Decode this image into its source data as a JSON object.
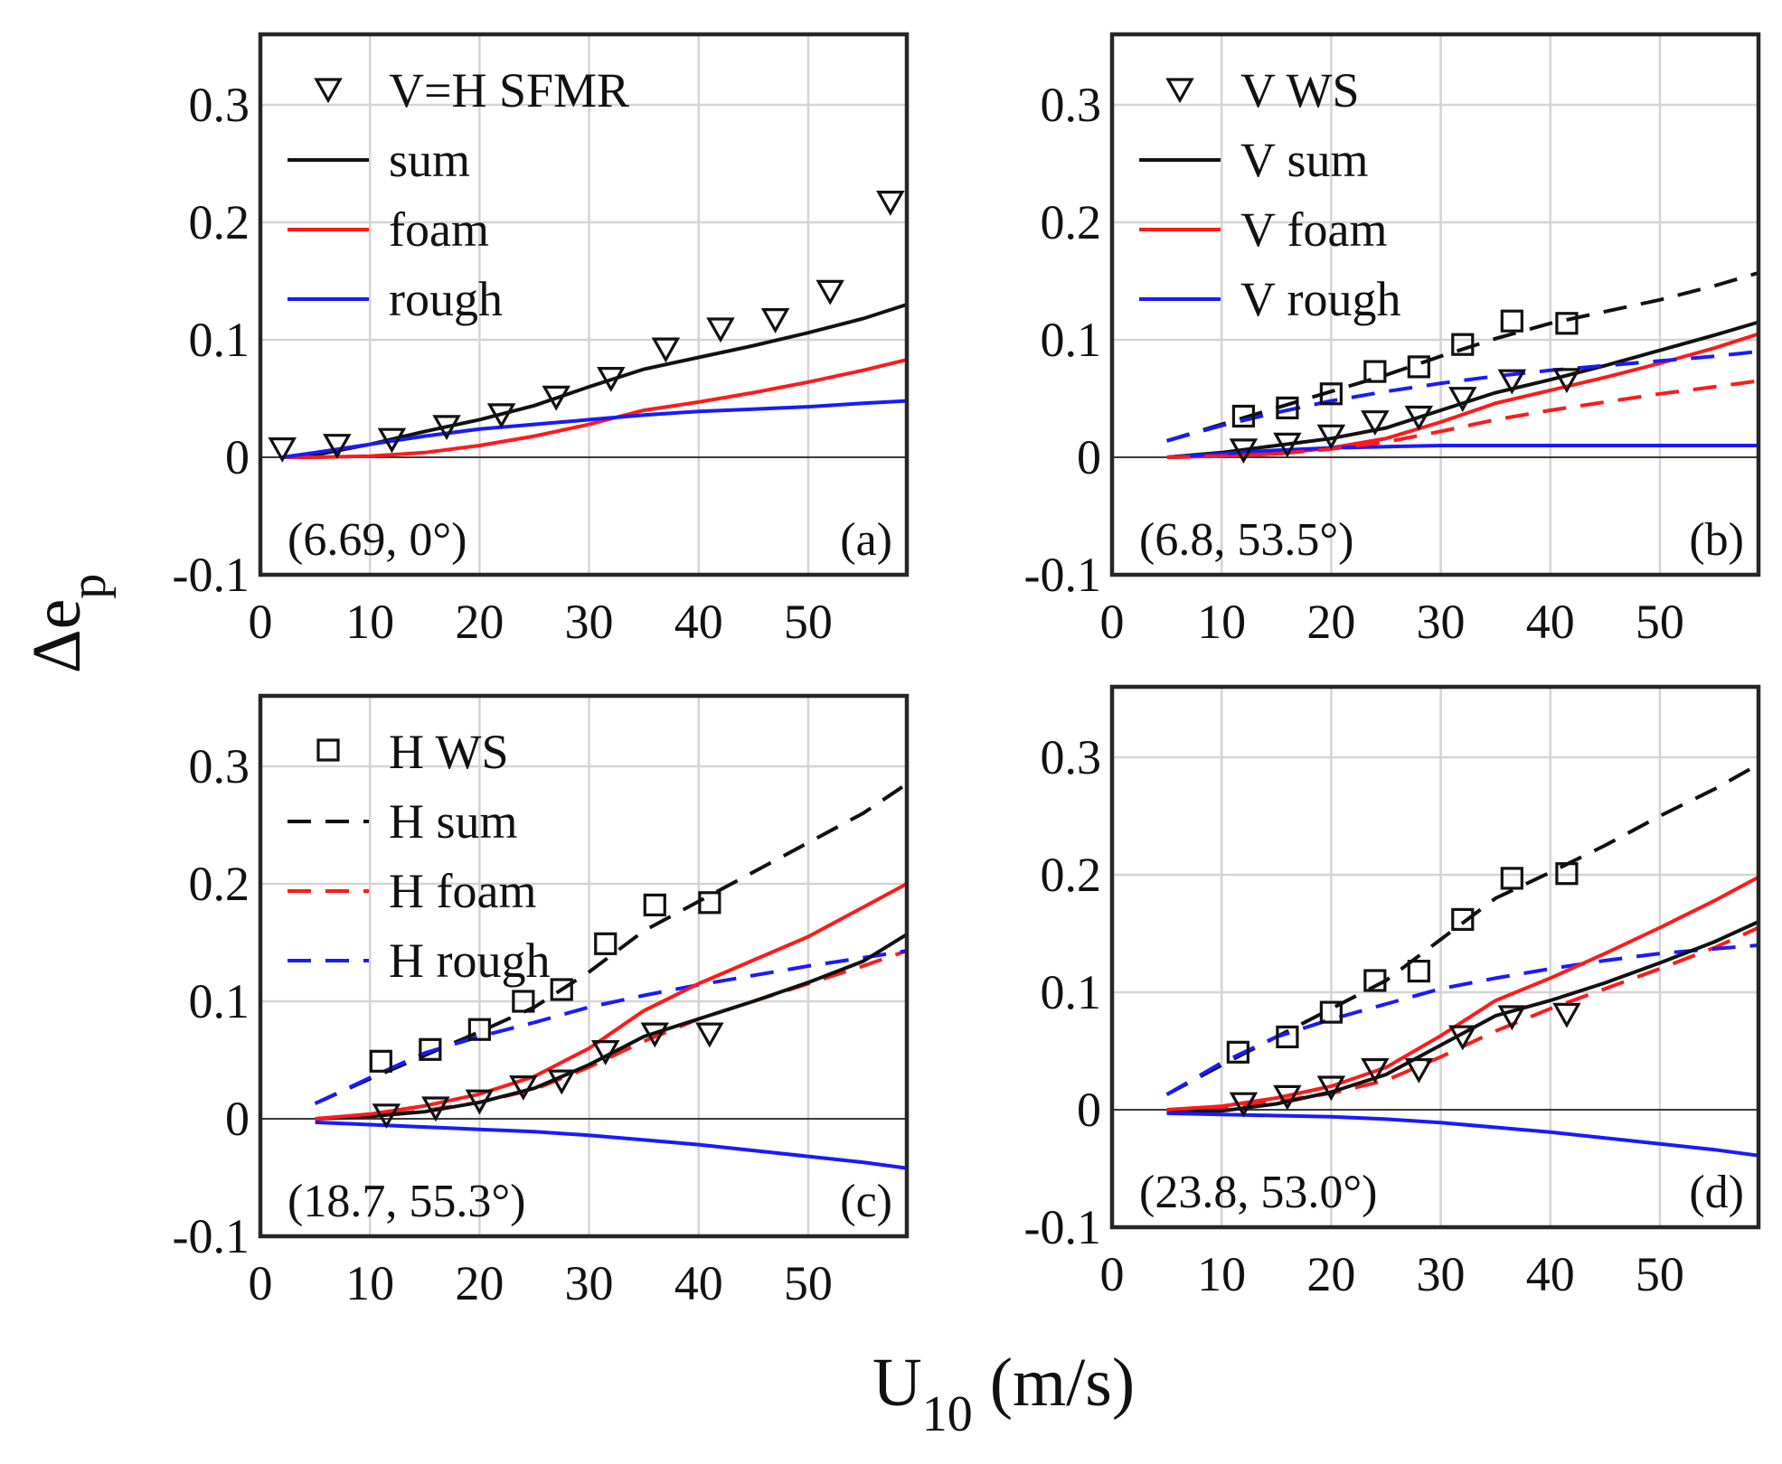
{
  "figure": {
    "xlabel_main": "U",
    "xlabel_sub": "10",
    "xlabel_unit": " (m/s)",
    "ylabel_main": "Δe",
    "ylabel_sub": "p"
  },
  "colors": {
    "black": "#111111",
    "red": "#ff1a1a",
    "blue": "#1a1aff"
  },
  "chart_data": [
    {
      "type": "line",
      "panel": "(a)",
      "corner_label": "(a)",
      "annotation": "(6.69, 0°)",
      "xlim": [
        0,
        59
      ],
      "ylim": [
        -0.1,
        0.36
      ],
      "xticks": [
        "0",
        "10",
        "20",
        "30",
        "40",
        "50"
      ],
      "yticks": [
        "-0.1",
        "0",
        "0.1",
        "0.2",
        "0.3"
      ],
      "grid": true,
      "legend_position": "top-left",
      "series": [
        {
          "name": "V=H SFMR",
          "kind": "scatter",
          "marker": "triangle-down",
          "color": "#111111",
          "x": [
            2,
            7,
            12,
            17,
            22,
            27,
            32,
            37,
            42,
            47,
            52,
            57.5
          ],
          "y": [
            0.008,
            0.011,
            0.016,
            0.027,
            0.037,
            0.052,
            0.068,
            0.093,
            0.11,
            0.118,
            0.142,
            0.218
          ]
        },
        {
          "name": "sum",
          "kind": "line",
          "dash": "solid",
          "color": "#111111",
          "x": [
            2,
            5,
            10,
            15,
            20,
            25,
            30,
            35,
            40,
            45,
            50,
            55,
            59
          ],
          "y": [
            0,
            0.002,
            0.011,
            0.022,
            0.032,
            0.044,
            0.06,
            0.075,
            0.085,
            0.095,
            0.106,
            0.118,
            0.13
          ]
        },
        {
          "name": "foam",
          "kind": "line",
          "dash": "solid",
          "color": "#ff1a1a",
          "x": [
            2,
            5,
            10,
            15,
            20,
            25,
            30,
            35,
            40,
            45,
            50,
            55,
            59
          ],
          "y": [
            0,
            0,
            0.001,
            0.004,
            0.01,
            0.018,
            0.028,
            0.04,
            0.047,
            0.055,
            0.064,
            0.074,
            0.083
          ]
        },
        {
          "name": "rough",
          "kind": "line",
          "dash": "solid",
          "color": "#1a1aff",
          "x": [
            2,
            5,
            10,
            15,
            20,
            25,
            30,
            35,
            40,
            45,
            50,
            55,
            59
          ],
          "y": [
            0,
            0.004,
            0.011,
            0.018,
            0.024,
            0.028,
            0.032,
            0.036,
            0.039,
            0.041,
            0.043,
            0.046,
            0.048
          ]
        }
      ]
    },
    {
      "type": "line",
      "panel": "(b)",
      "corner_label": "(b)",
      "annotation": "(6.8, 53.5°)",
      "xlim": [
        0,
        59
      ],
      "ylim": [
        -0.1,
        0.36
      ],
      "xticks": [
        "0",
        "10",
        "20",
        "30",
        "40",
        "50"
      ],
      "yticks": [
        "-0.1",
        "0",
        "0.1",
        "0.2",
        "0.3"
      ],
      "grid": true,
      "legend_position": "top-left",
      "series": [
        {
          "name": "V WS",
          "kind": "scatter",
          "marker": "triangle-down",
          "color": "#111111",
          "x": [
            12,
            16,
            20,
            24,
            28,
            32,
            36.5,
            41.5
          ],
          "y": [
            0.007,
            0.012,
            0.019,
            0.031,
            0.035,
            0.051,
            0.066,
            0.067
          ]
        },
        {
          "name": "V sum",
          "kind": "line",
          "dash": "solid",
          "color": "#111111",
          "x": [
            5,
            10,
            15,
            20,
            25,
            30,
            35,
            40,
            45,
            50,
            55,
            59
          ],
          "y": [
            0,
            0.004,
            0.01,
            0.016,
            0.025,
            0.04,
            0.055,
            0.066,
            0.078,
            0.091,
            0.104,
            0.115
          ]
        },
        {
          "name": "V foam",
          "kind": "line",
          "dash": "solid",
          "color": "#ff1a1a",
          "x": [
            5,
            10,
            15,
            20,
            25,
            30,
            35,
            40,
            45,
            50,
            55,
            59
          ],
          "y": [
            0,
            0.001,
            0.003,
            0.008,
            0.016,
            0.03,
            0.046,
            0.057,
            0.068,
            0.08,
            0.093,
            0.105
          ]
        },
        {
          "name": "V rough",
          "kind": "line",
          "dash": "solid",
          "color": "#1a1aff",
          "x": [
            5,
            10,
            15,
            20,
            25,
            30,
            35,
            40,
            45,
            50,
            55,
            59
          ],
          "y": [
            0,
            0.003,
            0.006,
            0.008,
            0.009,
            0.01,
            0.01,
            0.01,
            0.01,
            0.01,
            0.01,
            0.01
          ]
        },
        {
          "name": "",
          "kind": "scatter",
          "marker": "square",
          "color": "#111111",
          "x": [
            12,
            16,
            20,
            24,
            28,
            32,
            36.5,
            41.5
          ],
          "y": [
            0.035,
            0.042,
            0.054,
            0.073,
            0.077,
            0.096,
            0.116,
            0.114
          ]
        },
        {
          "name": "",
          "kind": "line",
          "dash": "dashed",
          "color": "#111111",
          "x": [
            5,
            10,
            15,
            20,
            25,
            30,
            35,
            40,
            45,
            50,
            55,
            59
          ],
          "y": [
            0.014,
            0.028,
            0.042,
            0.056,
            0.07,
            0.086,
            0.101,
            0.114,
            0.124,
            0.134,
            0.146,
            0.157
          ]
        },
        {
          "name": "",
          "kind": "line",
          "dash": "dashed",
          "color": "#ff1a1a",
          "x": [
            5,
            10,
            15,
            20,
            25,
            30,
            35,
            40,
            45,
            50,
            55,
            59
          ],
          "y": [
            0,
            0.001,
            0.003,
            0.007,
            0.013,
            0.022,
            0.032,
            0.04,
            0.047,
            0.054,
            0.06,
            0.065
          ]
        },
        {
          "name": "",
          "kind": "line",
          "dash": "dashed",
          "color": "#1a1aff",
          "x": [
            5,
            10,
            15,
            20,
            25,
            30,
            35,
            40,
            45,
            50,
            55,
            59
          ],
          "y": [
            0.014,
            0.027,
            0.038,
            0.048,
            0.056,
            0.063,
            0.069,
            0.074,
            0.078,
            0.082,
            0.086,
            0.09
          ]
        }
      ]
    },
    {
      "type": "line",
      "panel": "(c)",
      "corner_label": "(c)",
      "annotation": "(18.7, 55.3°)",
      "xlim": [
        0,
        59
      ],
      "ylim": [
        -0.1,
        0.36
      ],
      "xticks": [
        "0",
        "10",
        "20",
        "30",
        "40",
        "50"
      ],
      "yticks": [
        "-0.1",
        "0",
        "0.1",
        "0.2",
        "0.3"
      ],
      "grid": true,
      "legend_position": "top-left",
      "series": [
        {
          "name": "H WS",
          "kind": "scatter",
          "marker": "square",
          "color": "#111111",
          "x": [
            11,
            15.5,
            20,
            24,
            27.5,
            31.5,
            36,
            41
          ],
          "y": [
            0.049,
            0.059,
            0.076,
            0.1,
            0.11,
            0.149,
            0.182,
            0.184
          ]
        },
        {
          "name": "H sum",
          "kind": "line",
          "dash": "dashed",
          "color": "#111111",
          "x": [
            5,
            10,
            15,
            20,
            25,
            30,
            35,
            40,
            45,
            50,
            55,
            59
          ],
          "y": [
            0.013,
            0.034,
            0.054,
            0.074,
            0.095,
            0.125,
            0.16,
            0.185,
            0.21,
            0.235,
            0.26,
            0.285
          ]
        },
        {
          "name": "H foam",
          "kind": "line",
          "dash": "dashed",
          "color": "#ff1a1a",
          "x": [
            5,
            10,
            15,
            20,
            25,
            30,
            35,
            40,
            45,
            50,
            55,
            59
          ],
          "y": [
            0,
            0.002,
            0.007,
            0.014,
            0.025,
            0.044,
            0.066,
            0.085,
            0.1,
            0.115,
            0.13,
            0.143
          ]
        },
        {
          "name": "H rough",
          "kind": "line",
          "dash": "dashed",
          "color": "#1a1aff",
          "x": [
            5,
            10,
            15,
            20,
            25,
            30,
            35,
            40,
            45,
            50,
            55,
            59
          ],
          "y": [
            0.013,
            0.035,
            0.056,
            0.07,
            0.082,
            0.095,
            0.105,
            0.114,
            0.122,
            0.13,
            0.137,
            0.143
          ]
        },
        {
          "name": "",
          "kind": "scatter",
          "marker": "triangle-down",
          "color": "#111111",
          "x": [
            11.5,
            16,
            20,
            24,
            27.5,
            31.5,
            36,
            41
          ],
          "y": [
            0.004,
            0.01,
            0.016,
            0.028,
            0.033,
            0.058,
            0.073,
            0.073
          ]
        },
        {
          "name": "",
          "kind": "line",
          "dash": "solid",
          "color": "#111111",
          "x": [
            5,
            10,
            15,
            20,
            25,
            30,
            35,
            40,
            45,
            50,
            55,
            59
          ],
          "y": [
            0,
            0.002,
            0.006,
            0.014,
            0.026,
            0.046,
            0.07,
            0.085,
            0.1,
            0.116,
            0.134,
            0.157
          ]
        },
        {
          "name": "",
          "kind": "line",
          "dash": "solid",
          "color": "#ff1a1a",
          "x": [
            5,
            10,
            15,
            20,
            25,
            30,
            35,
            40,
            45,
            50,
            55,
            59
          ],
          "y": [
            0,
            0.004,
            0.011,
            0.021,
            0.036,
            0.06,
            0.092,
            0.115,
            0.135,
            0.155,
            0.18,
            0.2
          ]
        },
        {
          "name": "",
          "kind": "line",
          "dash": "solid",
          "color": "#1a1aff",
          "x": [
            5,
            10,
            15,
            20,
            25,
            30,
            35,
            40,
            45,
            50,
            55,
            59
          ],
          "y": [
            -0.003,
            -0.005,
            -0.007,
            -0.009,
            -0.011,
            -0.014,
            -0.018,
            -0.022,
            -0.027,
            -0.032,
            -0.037,
            -0.042
          ]
        }
      ]
    },
    {
      "type": "line",
      "panel": "(d)",
      "corner_label": "(d)",
      "annotation": "(23.8, 53.0°)",
      "xlim": [
        0,
        59
      ],
      "ylim": [
        -0.1,
        0.36
      ],
      "xticks": [
        "0",
        "10",
        "20",
        "30",
        "40",
        "50"
      ],
      "yticks": [
        "-0.1",
        "0",
        "0.1",
        "0.2",
        "0.3"
      ],
      "grid": true,
      "legend_position": "none",
      "series": [
        {
          "name": "",
          "kind": "scatter",
          "marker": "square",
          "color": "#111111",
          "x": [
            11.5,
            16,
            20,
            24,
            28,
            32,
            36.5,
            41.5
          ],
          "y": [
            0.049,
            0.062,
            0.083,
            0.11,
            0.118,
            0.162,
            0.197,
            0.201
          ]
        },
        {
          "name": "",
          "kind": "line",
          "dash": "dashed",
          "color": "#111111",
          "x": [
            5,
            10,
            15,
            20,
            25,
            30,
            35,
            40,
            45,
            50,
            55,
            59
          ],
          "y": [
            0.013,
            0.038,
            0.062,
            0.086,
            0.11,
            0.145,
            0.18,
            0.202,
            0.225,
            0.25,
            0.273,
            0.294
          ]
        },
        {
          "name": "",
          "kind": "line",
          "dash": "dashed",
          "color": "#ff1a1a",
          "x": [
            5,
            10,
            15,
            20,
            25,
            30,
            35,
            40,
            45,
            50,
            55,
            59
          ],
          "y": [
            0,
            0.002,
            0.007,
            0.014,
            0.025,
            0.045,
            0.067,
            0.086,
            0.103,
            0.12,
            0.138,
            0.155
          ]
        },
        {
          "name": "",
          "kind": "line",
          "dash": "dashed",
          "color": "#1a1aff",
          "x": [
            5,
            10,
            15,
            20,
            25,
            30,
            35,
            40,
            45,
            50,
            55,
            59
          ],
          "y": [
            0.013,
            0.04,
            0.062,
            0.077,
            0.09,
            0.103,
            0.112,
            0.12,
            0.127,
            0.133,
            0.137,
            0.14
          ]
        },
        {
          "name": "",
          "kind": "scatter",
          "marker": "triangle-down",
          "color": "#111111",
          "x": [
            12,
            16,
            20,
            24,
            28,
            32,
            36.5,
            41.5
          ],
          "y": [
            0.006,
            0.012,
            0.02,
            0.035,
            0.035,
            0.063,
            0.08,
            0.082
          ]
        },
        {
          "name": "",
          "kind": "line",
          "dash": "solid",
          "color": "#111111",
          "x": [
            5,
            10,
            15,
            20,
            25,
            30,
            35,
            40,
            45,
            50,
            55,
            59
          ],
          "y": [
            -0.002,
            -0.001,
            0.005,
            0.015,
            0.03,
            0.055,
            0.08,
            0.093,
            0.108,
            0.125,
            0.143,
            0.16
          ]
        },
        {
          "name": "",
          "kind": "line",
          "dash": "solid",
          "color": "#ff1a1a",
          "x": [
            5,
            10,
            15,
            20,
            25,
            30,
            35,
            40,
            45,
            50,
            55,
            59
          ],
          "y": [
            0,
            0.003,
            0.01,
            0.02,
            0.036,
            0.063,
            0.093,
            0.112,
            0.133,
            0.155,
            0.178,
            0.198
          ]
        },
        {
          "name": "",
          "kind": "line",
          "dash": "solid",
          "color": "#1a1aff",
          "x": [
            5,
            10,
            15,
            20,
            25,
            30,
            35,
            40,
            45,
            50,
            55,
            59
          ],
          "y": [
            -0.003,
            -0.004,
            -0.005,
            -0.006,
            -0.008,
            -0.011,
            -0.015,
            -0.019,
            -0.024,
            -0.029,
            -0.034,
            -0.039
          ]
        }
      ]
    }
  ]
}
